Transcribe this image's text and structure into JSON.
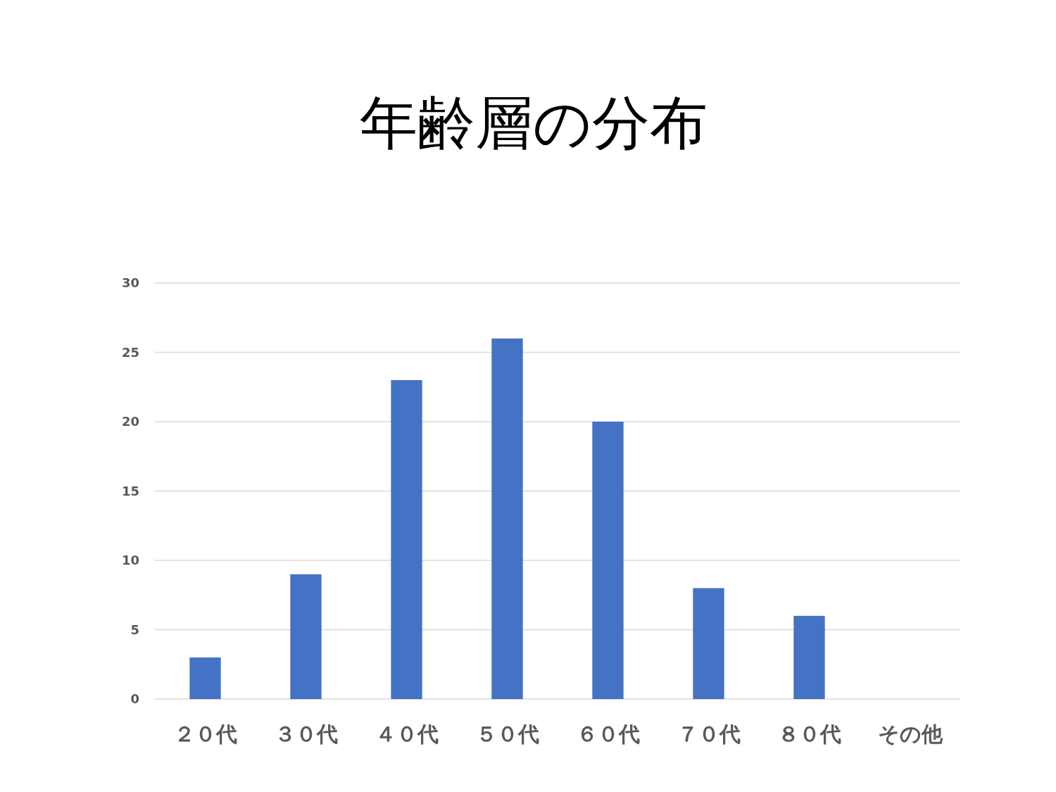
{
  "chart_data": {
    "type": "bar",
    "title": "年齢層の分布",
    "categories": [
      "２０代",
      "３０代",
      "４０代",
      "５０代",
      "６０代",
      "７０代",
      "８０代",
      "その他"
    ],
    "values": [
      3,
      9,
      23,
      26,
      20,
      8,
      6,
      0
    ],
    "color": "#4472c4",
    "ylim": [
      0,
      30
    ],
    "yticks": [
      0,
      5,
      10,
      15,
      20,
      25,
      30
    ],
    "grid": "y"
  }
}
